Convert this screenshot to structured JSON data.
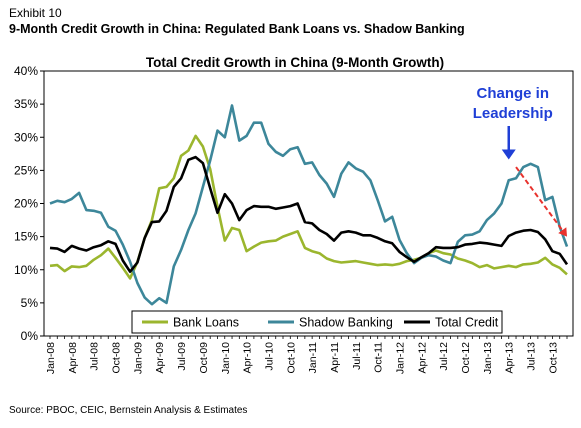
{
  "header": {
    "exhibit": "Exhibit 10",
    "headline": "9-Month Credit Growth in China: Regulated Bank Loans vs. Shadow Banking"
  },
  "footer": {
    "source": "Source: PBOC, CEIC, Bernstein Analysis & Estimates"
  },
  "chart_data": {
    "type": "line",
    "title": "Total Credit Growth in China (9-Month Growth)",
    "xlabel": "",
    "ylabel": "",
    "ylim": [
      0,
      40
    ],
    "y_ticks": [
      "0%",
      "5%",
      "10%",
      "15%",
      "20%",
      "25%",
      "30%",
      "35%",
      "40%"
    ],
    "grid": false,
    "legend_position": "bottom-center",
    "x_tick_labels": [
      "Jan-08",
      "Apr-08",
      "Jul-08",
      "Oct-08",
      "Jan-09",
      "Apr-09",
      "Jul-09",
      "Oct-09",
      "Jan-10",
      "Apr-10",
      "Jul-10",
      "Oct-10",
      "Jan-11",
      "Apr-11",
      "Jul-11",
      "Oct-11",
      "Jan-12",
      "Apr-12",
      "Jul-12",
      "Oct-12",
      "Jan-13",
      "Apr-13",
      "Jul-13",
      "Oct-13"
    ],
    "x_start": "Jan-08",
    "x_end": "Dec-13",
    "series": [
      {
        "name": "Bank Loans",
        "color": "#9bb62e",
        "values": [
          10.6,
          10.7,
          9.8,
          10.5,
          10.4,
          10.6,
          11.5,
          12.2,
          13.2,
          11.8,
          10.3,
          8.7,
          11.2,
          14.8,
          17.5,
          22.3,
          22.5,
          23.8,
          27.2,
          28.0,
          30.2,
          28.6,
          25.2,
          19.5,
          14.4,
          16.3,
          16.0,
          12.8,
          13.5,
          14.1,
          14.3,
          14.4,
          15.0,
          15.4,
          15.8,
          13.3,
          12.8,
          12.5,
          11.7,
          11.3,
          11.1,
          11.2,
          11.3,
          11.1,
          10.9,
          10.7,
          10.8,
          10.7,
          10.9,
          11.3,
          11.5,
          11.8,
          12.5,
          12.9,
          12.5,
          12.3,
          11.7,
          11.4,
          11.0,
          10.4,
          10.7,
          10.2,
          10.4,
          10.6,
          10.4,
          10.8,
          10.9,
          11.1,
          11.8,
          10.8,
          10.3,
          9.3
        ]
      },
      {
        "name": "Shadow Banking",
        "color": "#3d879a",
        "values": [
          20.0,
          20.4,
          20.2,
          20.7,
          21.6,
          19.0,
          18.9,
          18.6,
          16.5,
          15.9,
          13.8,
          11.2,
          8.0,
          5.8,
          4.8,
          5.7,
          5.0,
          10.5,
          13.0,
          16.0,
          18.5,
          22.5,
          26.5,
          31.0,
          30.0,
          34.8,
          29.5,
          30.2,
          32.2,
          32.2,
          29.0,
          27.8,
          27.2,
          28.2,
          28.5,
          26.0,
          26.2,
          24.3,
          23.0,
          21.0,
          24.5,
          26.2,
          25.3,
          24.8,
          23.5,
          20.5,
          17.3,
          18.0,
          14.5,
          12.5,
          11.0,
          11.8,
          12.2,
          12.0,
          11.4,
          11.0,
          14.2,
          15.2,
          15.3,
          15.8,
          17.5,
          18.5,
          20.0,
          23.5,
          23.8,
          25.5,
          26.0,
          25.5,
          20.5,
          21.0,
          16.5,
          13.5
        ]
      },
      {
        "name": "Total Credit",
        "color": "#000000",
        "values": [
          13.3,
          13.2,
          12.7,
          13.6,
          13.2,
          12.9,
          13.4,
          13.7,
          14.3,
          13.9,
          11.4,
          9.7,
          11.1,
          14.8,
          17.2,
          17.3,
          18.9,
          22.5,
          23.8,
          26.6,
          27.0,
          26.1,
          22.3,
          18.6,
          21.4,
          20.0,
          17.5,
          19.0,
          19.6,
          19.5,
          19.5,
          19.2,
          19.4,
          19.6,
          20.0,
          17.2,
          17.0,
          16.0,
          15.4,
          14.4,
          15.6,
          15.8,
          15.6,
          15.2,
          15.2,
          14.8,
          14.3,
          14.0,
          12.7,
          11.9,
          11.2,
          11.9,
          12.5,
          13.4,
          13.3,
          13.3,
          13.4,
          13.8,
          13.9,
          14.1,
          14.0,
          13.8,
          13.6,
          15.1,
          15.6,
          15.9,
          16.0,
          15.7,
          14.6,
          12.8,
          12.4,
          10.8
        ]
      }
    ],
    "annotations": [
      {
        "text_lines": [
          "Change in",
          "Leadership"
        ],
        "color": "#1f3fd6",
        "arrow_to": {
          "x": "Apr-13",
          "y": 26.5
        }
      },
      {
        "type": "dashed-arrow",
        "color": "#e8322d",
        "from": {
          "x": "May-13",
          "y": 25.5
        },
        "to": {
          "x": "Dec-13",
          "y": 15.0
        }
      }
    ]
  }
}
